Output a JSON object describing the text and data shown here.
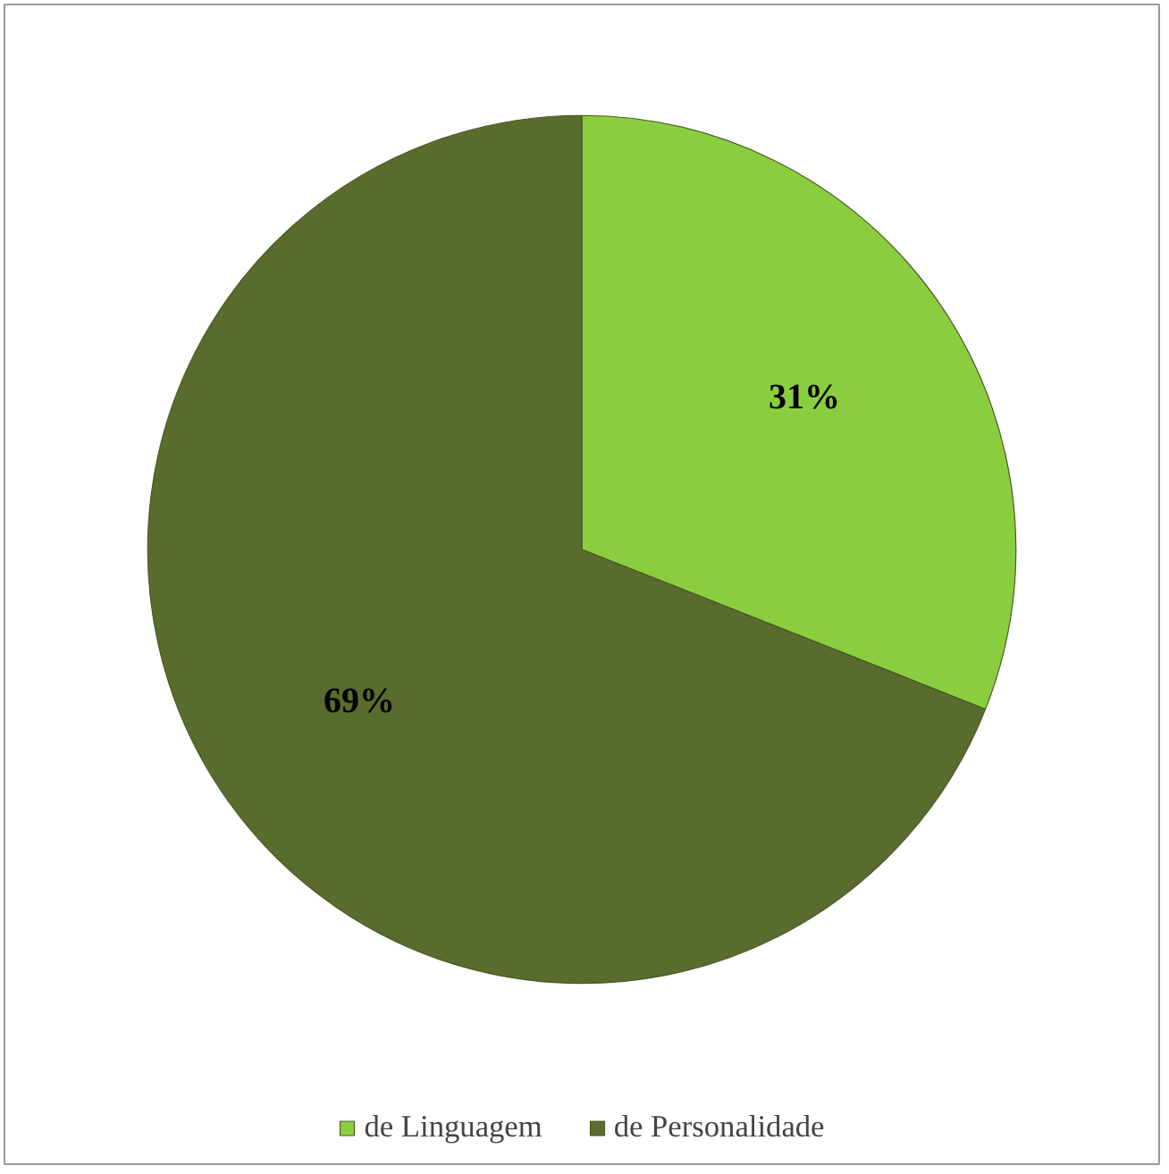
{
  "chart_data": {
    "type": "pie",
    "categories": [
      "de Linguagem",
      "de Personalidade"
    ],
    "values": [
      31,
      69
    ],
    "colors": [
      "#8ace3f",
      "#5a6b2e"
    ],
    "value_labels": [
      "31%",
      "69%"
    ],
    "legend": "bottom"
  }
}
